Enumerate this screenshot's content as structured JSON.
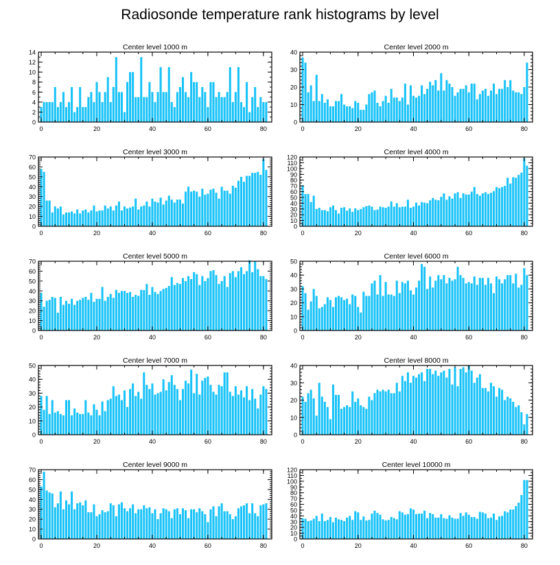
{
  "title": "Radiosonde temperature rank histograms by level",
  "colors": {
    "bar": "#18C2F8",
    "axis": "#000000",
    "text": "#000000"
  },
  "chart_data": [
    {
      "type": "bar",
      "title": "Center level 1000 m",
      "xlim": [
        -1,
        83
      ],
      "ylim": [
        0,
        14
      ],
      "xticks": [
        0,
        20,
        40,
        60,
        80
      ],
      "yticks": [
        0,
        2,
        4,
        6,
        8,
        10,
        12,
        14
      ],
      "values": [
        3,
        4,
        4,
        4,
        4,
        7,
        3,
        4,
        6,
        3,
        4,
        7,
        2,
        3,
        7,
        3,
        3,
        5,
        6,
        4,
        8,
        6,
        4,
        6,
        9,
        4,
        7,
        13,
        6,
        6,
        2,
        8,
        10,
        10,
        5,
        5,
        13,
        5,
        5,
        8,
        6,
        4,
        6,
        11,
        6,
        6,
        11,
        4,
        3,
        6,
        7,
        9,
        6,
        5,
        10,
        8,
        8,
        5,
        7,
        6,
        3,
        8,
        8,
        5,
        6,
        5,
        5,
        6,
        11,
        4,
        6,
        11,
        4,
        3,
        8,
        2,
        5,
        7,
        3,
        5,
        4,
        4
      ]
    },
    {
      "type": "bar",
      "title": "Center level 2000 m",
      "xlim": [
        -1,
        83
      ],
      "ylim": [
        0,
        40
      ],
      "xticks": [
        0,
        20,
        40,
        60,
        80
      ],
      "yticks": [
        0,
        10,
        20,
        30,
        40
      ],
      "values": [
        37,
        34,
        17,
        21,
        12,
        27,
        12,
        16,
        11,
        13,
        9,
        9,
        12,
        12,
        16,
        10,
        9,
        9,
        8,
        12,
        11,
        7,
        7,
        10,
        16,
        17,
        18,
        11,
        9,
        12,
        15,
        11,
        19,
        14,
        14,
        12,
        14,
        22,
        10,
        21,
        15,
        14,
        15,
        21,
        16,
        19,
        23,
        21,
        24,
        18,
        28,
        18,
        24,
        22,
        20,
        15,
        17,
        19,
        19,
        21,
        17,
        22,
        22,
        13,
        16,
        18,
        19,
        15,
        18,
        22,
        16,
        19,
        19,
        24,
        20,
        24,
        18,
        17,
        17,
        16,
        20,
        34
      ]
    },
    {
      "type": "bar",
      "title": "Center level 3000 m",
      "xlim": [
        -1,
        83
      ],
      "ylim": [
        0,
        70
      ],
      "xticks": [
        0,
        20,
        40,
        60,
        80
      ],
      "yticks": [
        0,
        10,
        20,
        30,
        40,
        50,
        60,
        70
      ],
      "values": [
        58,
        55,
        26,
        26,
        14,
        20,
        18,
        20,
        12,
        14,
        14,
        15,
        13,
        17,
        13,
        16,
        17,
        14,
        16,
        21,
        15,
        16,
        16,
        21,
        18,
        20,
        16,
        21,
        25,
        16,
        20,
        18,
        19,
        20,
        28,
        17,
        20,
        21,
        25,
        20,
        28,
        25,
        24,
        29,
        22,
        26,
        31,
        27,
        24,
        27,
        27,
        23,
        35,
        40,
        35,
        36,
        35,
        30,
        38,
        32,
        33,
        37,
        38,
        34,
        28,
        40,
        36,
        36,
        33,
        41,
        39,
        46,
        50,
        45,
        51,
        51,
        54,
        54,
        55,
        52,
        68,
        57
      ]
    },
    {
      "type": "bar",
      "title": "Center level 4000 m",
      "xlim": [
        -1,
        83
      ],
      "ylim": [
        0,
        120
      ],
      "xticks": [
        0,
        20,
        40,
        60,
        80
      ],
      "yticks": [
        0,
        10,
        20,
        30,
        40,
        50,
        60,
        70,
        80,
        90,
        100,
        110,
        120
      ],
      "values": [
        71,
        56,
        56,
        42,
        53,
        30,
        32,
        28,
        28,
        26,
        33,
        36,
        28,
        22,
        32,
        33,
        27,
        31,
        25,
        31,
        28,
        30,
        33,
        35,
        36,
        34,
        28,
        29,
        34,
        33,
        32,
        34,
        43,
        34,
        40,
        33,
        34,
        34,
        46,
        32,
        34,
        41,
        36,
        42,
        41,
        40,
        45,
        49,
        46,
        45,
        51,
        57,
        46,
        52,
        48,
        57,
        59,
        49,
        57,
        55,
        55,
        60,
        68,
        56,
        53,
        57,
        59,
        56,
        58,
        61,
        68,
        66,
        68,
        70,
        84,
        74,
        85,
        84,
        89,
        93,
        118,
        105
      ]
    },
    {
      "type": "bar",
      "title": "Center level 5000 m",
      "xlim": [
        -1,
        83
      ],
      "ylim": [
        0,
        70
      ],
      "xticks": [
        0,
        20,
        40,
        60,
        80
      ],
      "yticks": [
        0,
        10,
        20,
        30,
        40,
        50,
        60,
        70
      ],
      "values": [
        38,
        24,
        30,
        31,
        34,
        33,
        18,
        34,
        26,
        30,
        27,
        32,
        26,
        30,
        31,
        33,
        34,
        31,
        38,
        29,
        32,
        32,
        44,
        30,
        34,
        37,
        33,
        41,
        38,
        40,
        40,
        38,
        39,
        34,
        36,
        35,
        41,
        41,
        47,
        36,
        44,
        39,
        37,
        40,
        42,
        43,
        45,
        54,
        46,
        48,
        47,
        53,
        50,
        55,
        52,
        59,
        57,
        46,
        55,
        50,
        53,
        60,
        61,
        56,
        47,
        50,
        55,
        44,
        58,
        60,
        54,
        60,
        64,
        57,
        60,
        71,
        59,
        70,
        62,
        55,
        55,
        52
      ]
    },
    {
      "type": "bar",
      "title": "Center level 6000 m",
      "xlim": [
        -1,
        83
      ],
      "ylim": [
        0,
        50
      ],
      "xticks": [
        0,
        20,
        40,
        60,
        80
      ],
      "yticks": [
        0,
        10,
        20,
        30,
        40,
        50
      ],
      "values": [
        32,
        27,
        15,
        21,
        30,
        25,
        16,
        17,
        19,
        24,
        22,
        17,
        24,
        25,
        24,
        22,
        23,
        19,
        26,
        25,
        17,
        13,
        28,
        25,
        25,
        34,
        36,
        26,
        40,
        25,
        35,
        26,
        26,
        25,
        36,
        27,
        35,
        34,
        36,
        29,
        26,
        31,
        36,
        48,
        46,
        30,
        39,
        31,
        36,
        40,
        37,
        40,
        34,
        38,
        36,
        37,
        46,
        40,
        38,
        34,
        35,
        34,
        39,
        33,
        38,
        38,
        33,
        38,
        34,
        27,
        39,
        37,
        34,
        37,
        40,
        40,
        34,
        41,
        31,
        33,
        45,
        40
      ]
    },
    {
      "type": "bar",
      "title": "Center level 7000 m",
      "xlim": [
        -1,
        83
      ],
      "ylim": [
        0,
        50
      ],
      "xticks": [
        0,
        20,
        40,
        60,
        80
      ],
      "yticks": [
        0,
        10,
        20,
        30,
        40,
        50
      ],
      "values": [
        28,
        18,
        28,
        15,
        25,
        16,
        17,
        15,
        14,
        25,
        25,
        14,
        19,
        16,
        15,
        15,
        25,
        16,
        14,
        22,
        18,
        14,
        24,
        17,
        25,
        26,
        35,
        28,
        29,
        25,
        32,
        20,
        33,
        37,
        28,
        31,
        26,
        45,
        36,
        33,
        37,
        29,
        30,
        31,
        40,
        32,
        38,
        43,
        36,
        33,
        25,
        33,
        39,
        37,
        47,
        30,
        44,
        29,
        39,
        41,
        42,
        36,
        31,
        29,
        36,
        35,
        45,
        45,
        31,
        28,
        35,
        29,
        32,
        27,
        35,
        25,
        33,
        26,
        19,
        29,
        35,
        33
      ]
    },
    {
      "type": "bar",
      "title": "Center level 8000 m",
      "xlim": [
        -1,
        83
      ],
      "ylim": [
        0,
        40
      ],
      "xticks": [
        0,
        20,
        40,
        60,
        80
      ],
      "yticks": [
        0,
        10,
        20,
        30,
        40
      ],
      "values": [
        22,
        19,
        24,
        26,
        21,
        11,
        30,
        22,
        19,
        16,
        9,
        29,
        23,
        23,
        15,
        16,
        17,
        16,
        25,
        19,
        21,
        17,
        16,
        15,
        22,
        20,
        24,
        26,
        25,
        26,
        25,
        26,
        24,
        24,
        30,
        25,
        34,
        31,
        36,
        30,
        34,
        33,
        35,
        36,
        31,
        38,
        38,
        35,
        37,
        34,
        36,
        37,
        33,
        38,
        29,
        39,
        28,
        38,
        39,
        36,
        40,
        37,
        30,
        33,
        35,
        27,
        27,
        25,
        30,
        28,
        22,
        27,
        26,
        20,
        22,
        21,
        19,
        16,
        17,
        13,
        6,
        12
      ]
    },
    {
      "type": "bar",
      "title": "Center level 9000 m",
      "xlim": [
        -1,
        83
      ],
      "ylim": [
        0,
        70
      ],
      "xticks": [
        0,
        20,
        40,
        60,
        80
      ],
      "yticks": [
        0,
        10,
        20,
        30,
        40,
        50,
        60,
        70
      ],
      "values": [
        53,
        68,
        49,
        47,
        46,
        32,
        36,
        48,
        30,
        39,
        35,
        48,
        30,
        36,
        37,
        34,
        39,
        27,
        27,
        35,
        23,
        25,
        29,
        27,
        28,
        36,
        34,
        23,
        35,
        37,
        31,
        28,
        31,
        35,
        26,
        30,
        30,
        34,
        31,
        32,
        26,
        30,
        20,
        26,
        31,
        30,
        28,
        21,
        30,
        31,
        25,
        31,
        29,
        21,
        30,
        30,
        27,
        31,
        28,
        25,
        17,
        30,
        33,
        23,
        33,
        36,
        28,
        28,
        25,
        20,
        23,
        31,
        33,
        34,
        36,
        26,
        36,
        26,
        23,
        34,
        35,
        36
      ]
    },
    {
      "type": "bar",
      "title": "Center level 10000 m",
      "xlim": [
        -1,
        83
      ],
      "ylim": [
        0,
        120
      ],
      "xticks": [
        0,
        20,
        40,
        60,
        80
      ],
      "yticks": [
        0,
        10,
        20,
        30,
        40,
        50,
        60,
        70,
        80,
        90,
        100,
        110,
        120
      ],
      "values": [
        36,
        35,
        31,
        32,
        35,
        40,
        31,
        44,
        31,
        33,
        38,
        29,
        37,
        34,
        33,
        31,
        37,
        40,
        33,
        48,
        46,
        33,
        39,
        32,
        33,
        44,
        49,
        45,
        42,
        34,
        32,
        33,
        38,
        36,
        34,
        48,
        46,
        42,
        43,
        53,
        51,
        43,
        44,
        44,
        49,
        36,
        45,
        43,
        37,
        37,
        43,
        36,
        35,
        41,
        37,
        35,
        35,
        45,
        40,
        46,
        42,
        38,
        38,
        35,
        47,
        46,
        44,
        36,
        37,
        44,
        33,
        39,
        40,
        48,
        46,
        51,
        51,
        57,
        63,
        76,
        102,
        102
      ]
    }
  ]
}
